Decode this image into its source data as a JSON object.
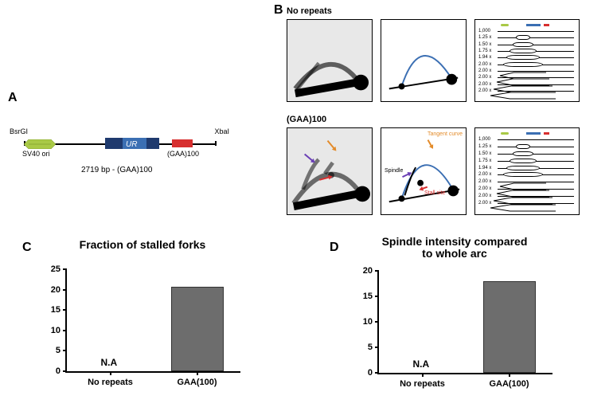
{
  "labels": {
    "A": "A",
    "B": "B",
    "C": "C",
    "D": "D"
  },
  "panelA": {
    "enzymeLeft": "BsrGI",
    "enzymeRight": "XbaI",
    "origin": "SV40 ori",
    "ur": "UR",
    "gaa": "(GAA)100",
    "caption": "2719 bp - (GAA)100",
    "colors": {
      "origin": "#a9c946",
      "urOuter": "#1f3a6e",
      "urInner": "#3b6fb3",
      "gaa": "#d72f2f"
    }
  },
  "panelB": {
    "title1": "No repeats",
    "title2": "(GAA)100",
    "tangent": "Tangent curve",
    "spindle": "Spindle",
    "stall": "Stall site",
    "curveColor": "#3b6fb3",
    "arrowColors": {
      "tangent": "#e38b2a",
      "spindle": "#6a3fb5",
      "stall": "#d72f2f"
    },
    "bandSizes": [
      "1,000",
      "1.25 x",
      "1.50 x",
      "1.75 x",
      "1.94 x",
      "2.00 x",
      "2.00 x",
      "2.00 x",
      "2.00 x",
      "2.00 x"
    ]
  },
  "chartC": {
    "title": "Fraction of stalled forks",
    "ymax": 25,
    "ytick": 5,
    "categories": [
      "No repeats",
      "GAA(100)"
    ],
    "values": [
      null,
      20.8
    ],
    "na": "N.A",
    "barColor": "#6d6d6d"
  },
  "chartD": {
    "title": "Spindle intensity compared to whole arc",
    "ymax": 20,
    "ytick": 5,
    "categories": [
      "No repeats",
      "GAA(100)"
    ],
    "values": [
      null,
      17.9
    ],
    "na": "N.A",
    "barColor": "#6d6d6d"
  }
}
